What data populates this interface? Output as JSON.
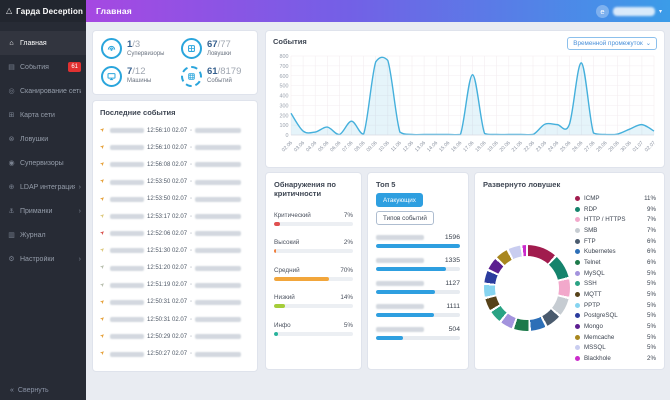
{
  "app": {
    "logo": "Гарда Deception",
    "page_title": "Главная",
    "user_avatar_letter": "e"
  },
  "colors": {
    "accent_blue": "#2aa5dc",
    "badge_red": "#e03131",
    "topbar_gradient": [
      "#a648e2",
      "#3b9ce8"
    ],
    "severity_row_icon": {
      "orange": "#e6a23c",
      "red": "#d9534f",
      "pale": "#ddc97e",
      "gray": "#b8bfae"
    }
  },
  "icons": {
    "logo": "△",
    "home": "⌂",
    "events": "▤",
    "scan": "◎",
    "network-map": "⊞",
    "traps": "⊗",
    "supervisors": "◉",
    "ldap": "⊕",
    "lures": "⚓",
    "journal": "▥",
    "settings": "⚙",
    "chevron": "›",
    "collapse": "«",
    "row-arrow": "➤",
    "host": "▫",
    "caret-down": "▾",
    "button-caret": "⌄"
  },
  "sidebar": {
    "items": [
      {
        "label": "Главная",
        "icon": "home",
        "active": true
      },
      {
        "label": "События",
        "icon": "events",
        "badge": "61"
      },
      {
        "label": "Сканирование сети",
        "icon": "scan"
      },
      {
        "label": "Карта сети",
        "icon": "network-map"
      },
      {
        "label": "Ловушки",
        "icon": "traps"
      },
      {
        "label": "Супервизоры",
        "icon": "supervisors"
      },
      {
        "label": "LDAP интеграция",
        "icon": "ldap",
        "chevron": true
      },
      {
        "label": "Приманки",
        "icon": "lures",
        "chevron": true
      },
      {
        "label": "Журнал",
        "icon": "journal"
      },
      {
        "label": "Настройки",
        "icon": "settings",
        "chevron": true
      }
    ],
    "collapse_label": "Свернуть"
  },
  "stats": {
    "items": [
      {
        "value": "1",
        "total": "/3",
        "label": "Супервизоры",
        "icon": "supervisors-stat",
        "ring": "solid"
      },
      {
        "value": "67",
        "total": "/77",
        "label": "Ловушки",
        "icon": "traps-stat",
        "ring": "solid"
      },
      {
        "value": "7",
        "total": "/12",
        "label": "Машины",
        "icon": "machines-stat",
        "ring": "solid"
      },
      {
        "value": "61",
        "total": "/8179",
        "label": "Событий",
        "icon": "events-stat",
        "ring": "dashed"
      }
    ]
  },
  "recent_events": {
    "title": "Последние события",
    "rows": [
      {
        "time": "12:56:10 02.07",
        "severity": "orange"
      },
      {
        "time": "12:56:10 02.07",
        "severity": "orange"
      },
      {
        "time": "12:56:08 02.07",
        "severity": "orange"
      },
      {
        "time": "12:53:50 02.07",
        "severity": "orange"
      },
      {
        "time": "12:53:50 02.07",
        "severity": "orange"
      },
      {
        "time": "12:53:17 02.07",
        "severity": "pale"
      },
      {
        "time": "12:52:06 02.07",
        "severity": "red"
      },
      {
        "time": "12:51:30 02.07",
        "severity": "pale"
      },
      {
        "time": "12:51:20 02.07",
        "severity": "gray"
      },
      {
        "time": "12:51:19 02.07",
        "severity": "gray"
      },
      {
        "time": "12:50:31 02.07",
        "severity": "orange"
      },
      {
        "time": "12:50:31 02.07",
        "severity": "orange"
      },
      {
        "time": "12:50:29 02.07",
        "severity": "orange"
      },
      {
        "time": "12:50:27 02.07",
        "severity": "orange"
      }
    ]
  },
  "events_panel": {
    "title": "События",
    "range_button": "Временной промежуток"
  },
  "severity_panel": {
    "title": "Обнаружения по критичности"
  },
  "top5_panel": {
    "title": "Топ 5",
    "tabs": [
      {
        "label": "Атакующих",
        "active": true
      },
      {
        "label": "Типов событий",
        "active": false
      }
    ]
  },
  "traps_panel": {
    "title": "Развернуто ловушек"
  },
  "chart_data": [
    {
      "id": "events_over_time",
      "type": "line",
      "title": "События",
      "x": [
        "02.06",
        "03.06",
        "04.06",
        "05.06",
        "06.06",
        "07.06",
        "08.06",
        "09.06",
        "10.06",
        "11.06",
        "12.06",
        "13.06",
        "14.06",
        "15.06",
        "16.06",
        "17.06",
        "18.06",
        "19.06",
        "20.06",
        "21.06",
        "22.06",
        "23.06",
        "24.06",
        "25.06",
        "26.06",
        "27.06",
        "28.06",
        "29.06",
        "30.06",
        "01.07",
        "02.07"
      ],
      "values": [
        220,
        40,
        30,
        80,
        5,
        140,
        10,
        740,
        755,
        30,
        5,
        5,
        5,
        5,
        5,
        610,
        15,
        5,
        5,
        5,
        5,
        110,
        105,
        105,
        730,
        20,
        5,
        10,
        60,
        105,
        40
      ],
      "ylim": [
        0,
        800
      ],
      "yticks": [
        0,
        100,
        200,
        300,
        400,
        500,
        600,
        700,
        800
      ],
      "grid": true,
      "legend": "none",
      "line_color": "#45b0dc",
      "fill_color": "rgba(69,176,220,0.14)"
    },
    {
      "id": "severity_detections",
      "type": "bar",
      "title": "Обнаружения по критичности",
      "categories": [
        "Критический",
        "Высокий",
        "Средний",
        "Низкий",
        "Инфо"
      ],
      "values": [
        7,
        2,
        70,
        14,
        5
      ],
      "unit": "%",
      "colors": [
        "#e04f4f",
        "#f07f3c",
        "#f2a63b",
        "#a5cd39",
        "#27b39b"
      ]
    },
    {
      "id": "top5_attackers",
      "type": "bar",
      "title": "Топ 5",
      "active_tab": "Атакующих",
      "labels_blurred": true,
      "values": [
        1596,
        1335,
        1127,
        1111,
        504
      ],
      "bar_color": "#2e9fe0",
      "xmax": 1596
    },
    {
      "id": "traps_deployed",
      "type": "pie",
      "title": "Развернуто ловушек",
      "labels": [
        "ICMP",
        "RDP",
        "HTTP / HTTPS",
        "SMB",
        "FTP",
        "Kubernetes",
        "Telnet",
        "MySQL",
        "SSH",
        "MQTT",
        "PPTP",
        "PostgreSQL",
        "Mongo",
        "Memcache",
        "MSSQL",
        "Blackhole"
      ],
      "values": [
        11,
        9,
        7,
        7,
        6,
        6,
        6,
        5,
        5,
        5,
        5,
        5,
        5,
        5,
        5,
        2
      ],
      "unit": "%",
      "colors": [
        "#a11c4e",
        "#15836c",
        "#f2a8cb",
        "#c6ccd2",
        "#4a5b6e",
        "#2d6fb7",
        "#1d7a4a",
        "#a393dd",
        "#2aa384",
        "#564219",
        "#86d4f0",
        "#2b3c9e",
        "#5c1f91",
        "#a8871f",
        "#c9cdf0",
        "#cb2ccb"
      ]
    }
  ]
}
